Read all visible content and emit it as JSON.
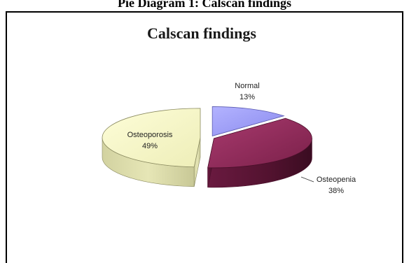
{
  "caption": "Pie Diagram 1: Calscan findings",
  "chart_data": {
    "type": "pie",
    "title": "Calscan findings",
    "slices": [
      {
        "label": "Normal",
        "value": 13,
        "value_label": "13%",
        "color": "#9999ff"
      },
      {
        "label": "Osteopenia",
        "value": 38,
        "value_label": "38%",
        "color": "#993366"
      },
      {
        "label": "Osteoporosis",
        "value": 49,
        "value_label": "49%",
        "color": "#ffffcc"
      }
    ],
    "style": "3d-exploded"
  }
}
